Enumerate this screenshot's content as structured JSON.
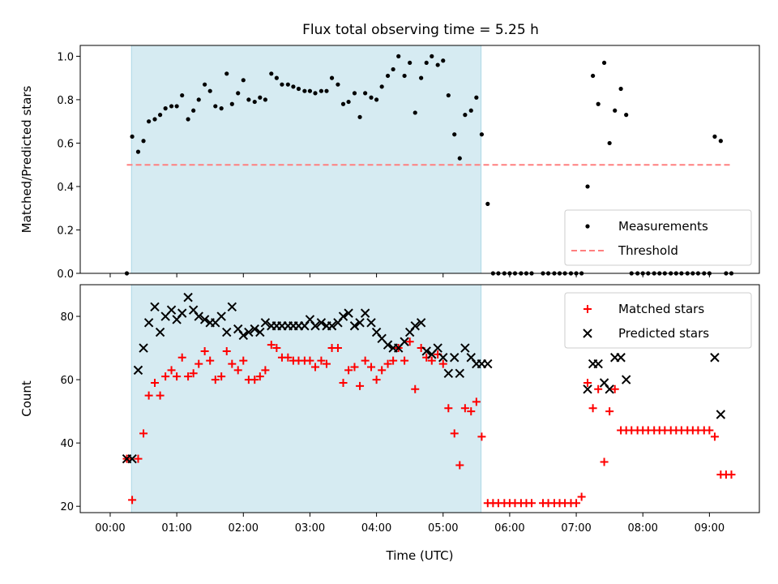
{
  "title": "Flux total observing time = 5.25 h",
  "colors": {
    "shade": "#add8e6",
    "measurement": "#000000",
    "threshold": "#ff7f7f",
    "matched": "#ff0000",
    "predicted": "#000000"
  },
  "chart_data": [
    {
      "type": "scatter",
      "ylabel": "Matched/Predicted stars",
      "xlim": [
        -0.45,
        9.75
      ],
      "ylim": [
        0,
        1.05
      ],
      "yticks": [
        0.0,
        0.2,
        0.4,
        0.6,
        0.8,
        1.0
      ],
      "ytick_labels": [
        "0.0",
        "0.2",
        "0.4",
        "0.6",
        "0.8",
        "1.0"
      ],
      "shaded_span": [
        0.32,
        5.57
      ],
      "threshold": 0.5,
      "legend_position": "lower right",
      "legend": [
        "Measurements",
        "Threshold"
      ],
      "series": [
        {
          "name": "Measurements",
          "x": [
            0.25,
            0.33,
            0.42,
            0.5,
            0.58,
            0.67,
            0.75,
            0.83,
            0.92,
            1.0,
            1.08,
            1.17,
            1.25,
            1.33,
            1.42,
            1.5,
            1.58,
            1.67,
            1.75,
            1.83,
            1.92,
            2.0,
            2.08,
            2.17,
            2.25,
            2.33,
            2.42,
            2.5,
            2.58,
            2.67,
            2.75,
            2.83,
            2.92,
            3.0,
            3.08,
            3.17,
            3.25,
            3.33,
            3.42,
            3.5,
            3.58,
            3.67,
            3.75,
            3.83,
            3.92,
            4.0,
            4.08,
            4.17,
            4.25,
            4.33,
            4.42,
            4.5,
            4.58,
            4.67,
            4.75,
            4.83,
            4.92,
            5.0,
            5.08,
            5.17,
            5.25,
            5.33,
            5.42,
            5.5,
            5.58,
            5.67,
            5.75,
            5.83,
            5.92,
            6.0,
            6.08,
            6.17,
            6.25,
            6.33,
            6.5,
            6.58,
            6.67,
            6.75,
            6.83,
            6.92,
            7.0,
            7.08,
            7.17,
            7.25,
            7.33,
            7.42,
            7.5,
            7.58,
            7.67,
            7.75,
            7.83,
            7.92,
            8.0,
            8.08,
            8.17,
            8.25,
            8.33,
            8.42,
            8.5,
            8.58,
            8.67,
            8.75,
            8.83,
            8.92,
            9.0,
            9.08,
            9.17,
            9.25,
            9.33
          ],
          "y": [
            0.0,
            0.63,
            0.56,
            0.61,
            0.7,
            0.71,
            0.73,
            0.76,
            0.77,
            0.77,
            0.82,
            0.71,
            0.75,
            0.8,
            0.87,
            0.84,
            0.77,
            0.76,
            0.92,
            0.78,
            0.83,
            0.89,
            0.8,
            0.79,
            0.81,
            0.8,
            0.92,
            0.9,
            0.87,
            0.87,
            0.86,
            0.85,
            0.84,
            0.84,
            0.83,
            0.84,
            0.84,
            0.9,
            0.87,
            0.78,
            0.79,
            0.83,
            0.72,
            0.83,
            0.81,
            0.8,
            0.86,
            0.91,
            0.94,
            1.0,
            0.91,
            0.97,
            0.74,
            0.9,
            0.97,
            1.0,
            0.96,
            0.98,
            0.82,
            0.64,
            0.53,
            0.73,
            0.75,
            0.81,
            0.64,
            0.32,
            0.0,
            0.0,
            0.0,
            0.0,
            0.0,
            0.0,
            0.0,
            0.0,
            0.0,
            0.0,
            0.0,
            0.0,
            0.0,
            0.0,
            0.0,
            0.0,
            0.4,
            0.91,
            0.78,
            0.97,
            0.6,
            0.75,
            0.85,
            0.73,
            0.0,
            0.0,
            0.0,
            0.0,
            0.0,
            0.0,
            0.0,
            0.0,
            0.0,
            0.0,
            0.0,
            0.0,
            0.0,
            0.0,
            0.0,
            0.63,
            0.61,
            0.0,
            0.0
          ]
        }
      ]
    },
    {
      "type": "scatter",
      "xlabel": "Time (UTC)",
      "ylabel": "Count",
      "xlim": [
        -0.45,
        9.75
      ],
      "ylim": [
        18,
        90
      ],
      "yticks": [
        20,
        40,
        60,
        80
      ],
      "ytick_labels": [
        "20",
        "40",
        "60",
        "80"
      ],
      "xticks": [
        0,
        1,
        2,
        3,
        4,
        5,
        6,
        7,
        8,
        9
      ],
      "xtick_labels": [
        "00:00",
        "01:00",
        "02:00",
        "03:00",
        "04:00",
        "05:00",
        "06:00",
        "07:00",
        "08:00",
        "09:00"
      ],
      "shaded_span": [
        0.32,
        5.57
      ],
      "legend_position": "upper right",
      "legend": [
        "Matched stars",
        "Predicted stars"
      ],
      "series": [
        {
          "name": "Matched stars",
          "x": [
            0.25,
            0.33,
            0.42,
            0.5,
            0.58,
            0.67,
            0.75,
            0.83,
            0.92,
            1.0,
            1.08,
            1.17,
            1.25,
            1.33,
            1.42,
            1.5,
            1.58,
            1.67,
            1.75,
            1.83,
            1.92,
            2.0,
            2.08,
            2.17,
            2.25,
            2.33,
            2.42,
            2.5,
            2.58,
            2.67,
            2.75,
            2.83,
            2.92,
            3.0,
            3.08,
            3.17,
            3.25,
            3.33,
            3.42,
            3.5,
            3.58,
            3.67,
            3.75,
            3.83,
            3.92,
            4.0,
            4.08,
            4.17,
            4.25,
            4.33,
            4.42,
            4.5,
            4.58,
            4.67,
            4.75,
            4.83,
            4.92,
            5.0,
            5.08,
            5.17,
            5.25,
            5.33,
            5.42,
            5.5,
            5.58,
            5.67,
            5.75,
            5.83,
            5.92,
            6.0,
            6.08,
            6.17,
            6.25,
            6.33,
            6.5,
            6.58,
            6.67,
            6.75,
            6.83,
            6.92,
            7.0,
            7.08,
            7.17,
            7.25,
            7.33,
            7.42,
            7.5,
            7.58,
            7.67,
            7.75,
            7.83,
            7.92,
            8.0,
            8.08,
            8.17,
            8.25,
            8.33,
            8.42,
            8.5,
            8.58,
            8.67,
            8.75,
            8.83,
            8.92,
            9.0,
            9.08,
            9.17,
            9.25,
            9.33
          ],
          "y": [
            35,
            22,
            35,
            43,
            55,
            59,
            55,
            61,
            63,
            61,
            67,
            61,
            62,
            65,
            69,
            66,
            60,
            61,
            69,
            65,
            63,
            66,
            60,
            60,
            61,
            63,
            71,
            70,
            67,
            67,
            66,
            66,
            66,
            66,
            64,
            66,
            65,
            70,
            70,
            59,
            63,
            64,
            58,
            66,
            64,
            60,
            63,
            65,
            66,
            70,
            66,
            72,
            57,
            70,
            67,
            66,
            68,
            65,
            51,
            43,
            33,
            51,
            50,
            53,
            42,
            21,
            21,
            21,
            21,
            21,
            21,
            21,
            21,
            21,
            21,
            21,
            21,
            21,
            21,
            21,
            21,
            23,
            59,
            51,
            57,
            34,
            50,
            57,
            44,
            44,
            44,
            44,
            44,
            44,
            44,
            44,
            44,
            44,
            44,
            44,
            44,
            44,
            44,
            44,
            44,
            42,
            30,
            30,
            30
          ]
        },
        {
          "name": "Predicted stars",
          "x": [
            0.25,
            0.33,
            0.42,
            0.5,
            0.58,
            0.67,
            0.75,
            0.83,
            0.92,
            1.0,
            1.08,
            1.17,
            1.25,
            1.33,
            1.42,
            1.5,
            1.58,
            1.67,
            1.75,
            1.83,
            1.92,
            2.0,
            2.08,
            2.17,
            2.25,
            2.33,
            2.42,
            2.5,
            2.58,
            2.67,
            2.75,
            2.83,
            2.92,
            3.0,
            3.08,
            3.17,
            3.25,
            3.33,
            3.42,
            3.5,
            3.58,
            3.67,
            3.75,
            3.83,
            3.92,
            4.0,
            4.08,
            4.17,
            4.25,
            4.33,
            4.42,
            4.5,
            4.58,
            4.67,
            4.75,
            4.83,
            4.92,
            5.0,
            5.08,
            5.17,
            5.25,
            5.33,
            5.42,
            5.5,
            5.58,
            5.67,
            7.17,
            7.25,
            7.33,
            7.42,
            7.5,
            7.58,
            7.67,
            7.75,
            9.08,
            9.17
          ],
          "y": [
            35,
            35,
            63,
            70,
            78,
            83,
            75,
            80,
            82,
            79,
            81,
            86,
            82,
            80,
            79,
            78,
            78,
            80,
            75,
            83,
            76,
            74,
            75,
            76,
            75,
            78,
            77,
            77,
            77,
            77,
            77,
            77,
            77,
            79,
            77,
            78,
            77,
            77,
            78,
            80,
            81,
            77,
            78,
            81,
            78,
            75,
            73,
            71,
            70,
            70,
            72,
            75,
            77,
            78,
            69,
            68,
            70,
            67,
            62,
            67,
            62,
            70,
            67,
            65,
            65,
            65,
            57,
            65,
            65,
            59,
            57,
            67,
            67,
            60,
            67,
            49
          ]
        }
      ]
    }
  ]
}
